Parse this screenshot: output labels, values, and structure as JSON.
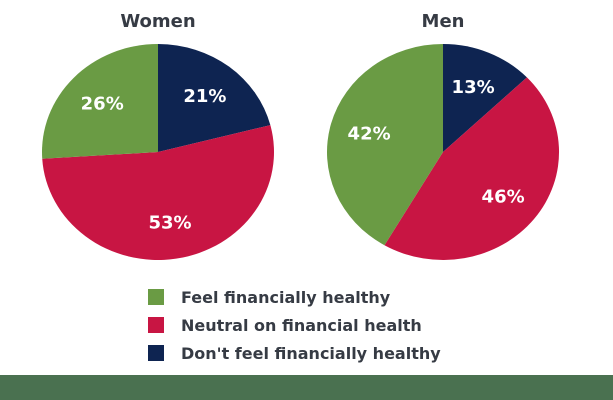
{
  "text_color": "#363b44",
  "chart_data": {
    "type": "pie",
    "legend_position": "bottom",
    "charts": [
      {
        "title": "Women",
        "slices": [
          {
            "label": "Don't feel financially healthy",
            "display": "21%",
            "value": 21,
            "color": "#0e2451"
          },
          {
            "label": "Neutral on financial health",
            "display": "53%",
            "value": 53,
            "color": "#c81543"
          },
          {
            "label": "Feel financially healthy",
            "display": "26%",
            "value": 26,
            "color": "#6a9b44"
          }
        ]
      },
      {
        "title": "Men",
        "slices": [
          {
            "label": "Don't feel financially healthy",
            "display": "13%",
            "value": 13,
            "color": "#0e2451"
          },
          {
            "label": "Neutral on financial health",
            "display": "46%",
            "value": 46,
            "color": "#c81543"
          },
          {
            "label": "Feel financially healthy",
            "display": "42%",
            "value": 42,
            "color": "#6a9b44"
          }
        ]
      }
    ]
  },
  "legend": {
    "items": [
      {
        "label": "Feel financially healthy",
        "color": "#6a9b44"
      },
      {
        "label": "Neutral on financial health",
        "color": "#c81543"
      },
      {
        "label": "Don't feel financially healthy",
        "color": "#0e2451"
      }
    ]
  },
  "footer": {
    "color": "#4a7150"
  }
}
